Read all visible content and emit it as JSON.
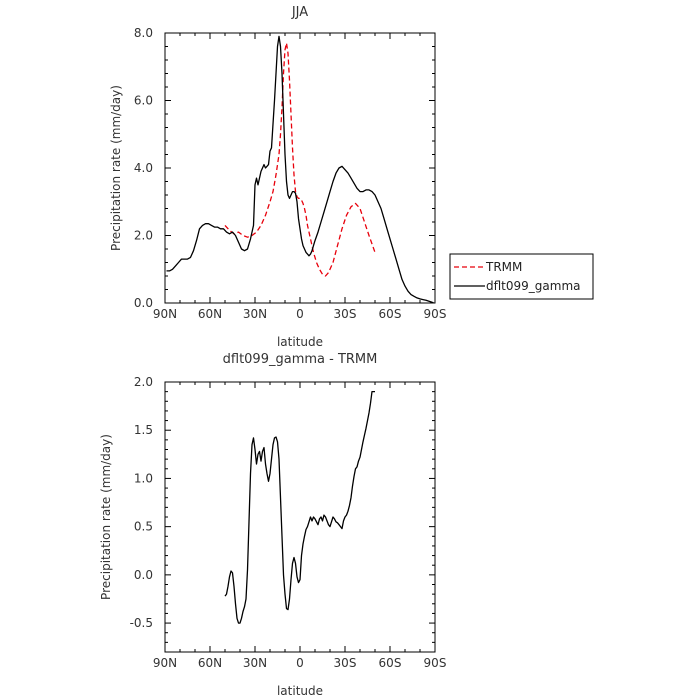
{
  "chart_data": [
    {
      "type": "line",
      "title": "JJA",
      "xlabel": "latitude",
      "ylabel": "Precipitation rate (mm/day)",
      "xlim": [
        90,
        -90
      ],
      "ylim": [
        0,
        8
      ],
      "x_tick_values": [
        90,
        60,
        30,
        0,
        -30,
        -60,
        -90
      ],
      "x_tick_labels": [
        "90N",
        "60N",
        "30N",
        "0",
        "30S",
        "60S",
        "90S"
      ],
      "y_tick_values": [
        0,
        2,
        4,
        6,
        8
      ],
      "y_tick_labels": [
        "0.0",
        "2.0",
        "4.0",
        "6.0",
        "8.0"
      ],
      "grid": false,
      "legend_position": "right",
      "series": [
        {
          "name": "TRMM",
          "color": "#e8000b",
          "style": "dashed",
          "x": [
            50,
            47,
            44,
            41,
            38,
            35,
            32,
            29,
            26,
            23,
            20,
            18,
            16,
            14,
            13,
            12,
            11,
            10,
            9,
            8,
            7,
            6,
            5,
            4,
            3,
            2,
            1,
            0,
            -1,
            -2,
            -3,
            -4,
            -5,
            -7,
            -9,
            -11,
            -13,
            -15,
            -17,
            -19,
            -22,
            -25,
            -28,
            -31,
            -34,
            -37,
            -40,
            -43,
            -46,
            -50
          ],
          "y": [
            2.3,
            2.15,
            2.05,
            2.1,
            2.0,
            1.95,
            2.0,
            2.1,
            2.3,
            2.6,
            3.0,
            3.3,
            3.8,
            4.4,
            5.0,
            5.8,
            6.8,
            7.5,
            7.7,
            7.4,
            6.6,
            5.6,
            4.6,
            3.8,
            3.3,
            3.15,
            3.1,
            3.1,
            3.05,
            2.95,
            2.8,
            2.6,
            2.3,
            1.9,
            1.5,
            1.2,
            1.0,
            0.85,
            0.8,
            0.9,
            1.2,
            1.7,
            2.2,
            2.6,
            2.85,
            2.95,
            2.8,
            2.4,
            2.0,
            1.5
          ]
        },
        {
          "name": "dflt099_gamma",
          "color": "#000000",
          "style": "solid",
          "x": [
            89,
            87,
            85,
            83,
            81,
            79,
            77,
            75,
            73,
            71,
            69,
            67,
            65,
            63,
            61,
            59,
            57,
            55,
            53,
            51,
            49,
            47,
            45,
            43,
            41,
            39,
            37,
            35,
            33,
            31,
            30,
            29,
            28,
            27,
            26,
            25,
            24,
            23,
            22,
            21,
            20,
            19,
            18,
            17,
            16,
            15,
            14,
            13,
            12,
            11,
            10,
            9,
            8,
            7,
            6,
            5,
            4,
            3,
            2,
            1,
            0,
            -1,
            -2,
            -3,
            -4,
            -5,
            -6,
            -7,
            -8,
            -9,
            -10,
            -12,
            -14,
            -16,
            -18,
            -20,
            -22,
            -24,
            -26,
            -28,
            -30,
            -32,
            -34,
            -36,
            -38,
            -40,
            -42,
            -44,
            -46,
            -48,
            -50,
            -52,
            -54,
            -56,
            -58,
            -60,
            -62,
            -64,
            -66,
            -68,
            -70,
            -72,
            -74,
            -76,
            -78,
            -80,
            -82,
            -84,
            -86,
            -88,
            -89
          ],
          "y": [
            0.95,
            0.95,
            1.0,
            1.1,
            1.2,
            1.3,
            1.3,
            1.3,
            1.35,
            1.55,
            1.85,
            2.2,
            2.3,
            2.35,
            2.35,
            2.3,
            2.25,
            2.25,
            2.2,
            2.2,
            2.1,
            2.05,
            2.1,
            2.0,
            1.8,
            1.6,
            1.55,
            1.6,
            1.9,
            2.3,
            3.5,
            3.7,
            3.5,
            3.7,
            3.9,
            4.0,
            4.1,
            4.0,
            4.05,
            4.1,
            4.5,
            4.6,
            5.3,
            6.0,
            6.8,
            7.6,
            7.9,
            7.6,
            6.8,
            5.6,
            4.4,
            3.6,
            3.2,
            3.1,
            3.2,
            3.3,
            3.3,
            3.25,
            3.0,
            2.5,
            2.2,
            1.9,
            1.7,
            1.6,
            1.5,
            1.45,
            1.4,
            1.45,
            1.55,
            1.7,
            1.85,
            2.1,
            2.4,
            2.7,
            3.0,
            3.3,
            3.6,
            3.85,
            4.0,
            4.05,
            3.95,
            3.85,
            3.7,
            3.55,
            3.4,
            3.3,
            3.3,
            3.35,
            3.35,
            3.3,
            3.2,
            3.0,
            2.8,
            2.5,
            2.2,
            1.9,
            1.6,
            1.3,
            1.0,
            0.7,
            0.5,
            0.35,
            0.25,
            0.2,
            0.15,
            0.12,
            0.1,
            0.08,
            0.05,
            0.02,
            0.01
          ]
        }
      ]
    },
    {
      "type": "line",
      "title": "dflt099_gamma - TRMM",
      "xlabel": "latitude",
      "ylabel": "Precipitation rate (mm/day)",
      "xlim": [
        90,
        -90
      ],
      "ylim": [
        -0.8,
        2.0
      ],
      "x_tick_values": [
        90,
        60,
        30,
        0,
        -30,
        -60,
        -90
      ],
      "x_tick_labels": [
        "90N",
        "60N",
        "30N",
        "0",
        "30S",
        "60S",
        "90S"
      ],
      "y_tick_values": [
        -0.5,
        0.0,
        0.5,
        1.0,
        1.5,
        2.0
      ],
      "y_tick_labels": [
        "-0.5",
        "0.0",
        "0.5",
        "1.0",
        "1.5",
        "2.0"
      ],
      "grid": false,
      "series": [
        {
          "color": "#000000",
          "style": "solid",
          "x": [
            50,
            49,
            48,
            47,
            46,
            45,
            44,
            43,
            42,
            41,
            40,
            39,
            38,
            37,
            36,
            35,
            34,
            33,
            32,
            31,
            30,
            29,
            28,
            27,
            26,
            25,
            24,
            23,
            22,
            21,
            20,
            19,
            18,
            17,
            16,
            15,
            14,
            13,
            12,
            11,
            10,
            9,
            8,
            7,
            6,
            5,
            4,
            3,
            2,
            1,
            0,
            -1,
            -2,
            -3,
            -4,
            -5,
            -6,
            -7,
            -8,
            -9,
            -10,
            -11,
            -12,
            -13,
            -14,
            -15,
            -16,
            -17,
            -18,
            -19,
            -20,
            -21,
            -22,
            -23,
            -24,
            -25,
            -26,
            -27,
            -28,
            -29,
            -30,
            -31,
            -32,
            -33,
            -34,
            -35,
            -36,
            -37,
            -38,
            -39,
            -40,
            -41,
            -42,
            -43,
            -44,
            -45,
            -46,
            -47,
            -48,
            -49,
            -50
          ],
          "y": [
            -0.22,
            -0.2,
            -0.12,
            -0.02,
            0.04,
            0.02,
            -0.12,
            -0.3,
            -0.45,
            -0.5,
            -0.5,
            -0.45,
            -0.38,
            -0.33,
            -0.25,
            0.05,
            0.55,
            1.05,
            1.35,
            1.42,
            1.3,
            1.15,
            1.25,
            1.28,
            1.18,
            1.28,
            1.32,
            1.15,
            1.05,
            0.97,
            1.05,
            1.2,
            1.35,
            1.42,
            1.43,
            1.38,
            1.2,
            0.8,
            0.4,
            0.0,
            -0.2,
            -0.35,
            -0.36,
            -0.25,
            -0.05,
            0.12,
            0.18,
            0.12,
            -0.02,
            -0.08,
            -0.05,
            0.2,
            0.32,
            0.4,
            0.47,
            0.5,
            0.55,
            0.6,
            0.56,
            0.6,
            0.58,
            0.55,
            0.52,
            0.58,
            0.6,
            0.56,
            0.62,
            0.6,
            0.56,
            0.52,
            0.5,
            0.55,
            0.6,
            0.58,
            0.55,
            0.54,
            0.52,
            0.5,
            0.48,
            0.56,
            0.6,
            0.62,
            0.66,
            0.72,
            0.8,
            0.92,
            1.02,
            1.1,
            1.12,
            1.18,
            1.22,
            1.3,
            1.38,
            1.45,
            1.52,
            1.6,
            1.68,
            1.78,
            1.9,
            1.9,
            1.9
          ]
        }
      ]
    }
  ]
}
